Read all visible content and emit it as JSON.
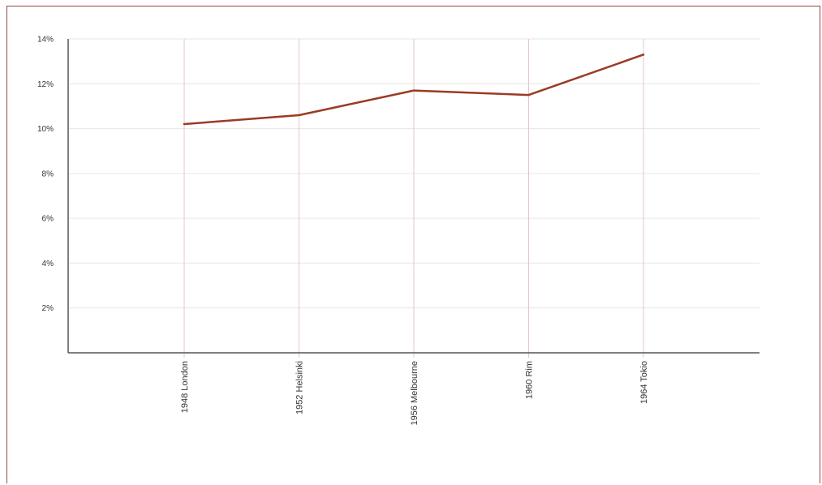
{
  "chart_data": {
    "type": "line",
    "categories": [
      "1948 London",
      "1952 Helsinki",
      "1956 Melbourne",
      "1960 Rim",
      "1964 Tokio"
    ],
    "series": [
      {
        "values": [
          10.2,
          10.6,
          11.7,
          11.5,
          13.3
        ]
      }
    ],
    "ylim": [
      0,
      14
    ],
    "yticks": [
      {
        "value": 2,
        "label": "2%"
      },
      {
        "value": 4,
        "label": "4%"
      },
      {
        "value": 6,
        "label": "6%"
      },
      {
        "value": 8,
        "label": "8%"
      },
      {
        "value": 10,
        "label": "10%"
      },
      {
        "value": 12,
        "label": "12%"
      },
      {
        "value": 14,
        "label": "14%"
      }
    ],
    "grid": true,
    "colors": {
      "line": "#9b3b24",
      "vgrid": "#e2c8c4",
      "hgrid": "#e6e6e6",
      "axis": "#555555",
      "frame": "#8b4a43"
    }
  }
}
